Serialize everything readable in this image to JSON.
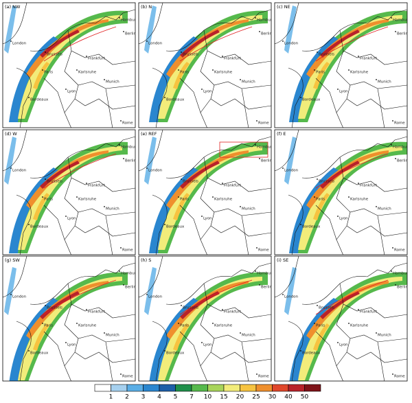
{
  "panels": [
    {
      "label": "(a) NW"
    },
    {
      "label": "(b) N"
    },
    {
      "label": "(c) NE"
    },
    {
      "label": "(d) W"
    },
    {
      "label": "(e) REF"
    },
    {
      "label": "(f) E"
    },
    {
      "label": "(g) SW"
    },
    {
      "label": "(h) S"
    },
    {
      "label": "(i) SE"
    }
  ],
  "cities": [
    "London",
    "Brussels",
    "Paris",
    "Hamburg",
    "Berlin",
    "Frankfurt",
    "Karlsruhe",
    "Munich",
    "Lyon",
    "Bordeaux",
    "Rome"
  ],
  "legend": {
    "labels": [
      1,
      2,
      3,
      4,
      5,
      7,
      10,
      15,
      20,
      25,
      30,
      40,
      50
    ],
    "colors": [
      "#ffffff",
      "#a6d0ee",
      "#5aaee6",
      "#2a86cf",
      "#1d5fa8",
      "#1f8f4a",
      "#56b94c",
      "#a8d45a",
      "#f2ec7a",
      "#f7c340",
      "#ef8f2d",
      "#e0472a",
      "#b8222a",
      "#7e1218"
    ]
  }
}
